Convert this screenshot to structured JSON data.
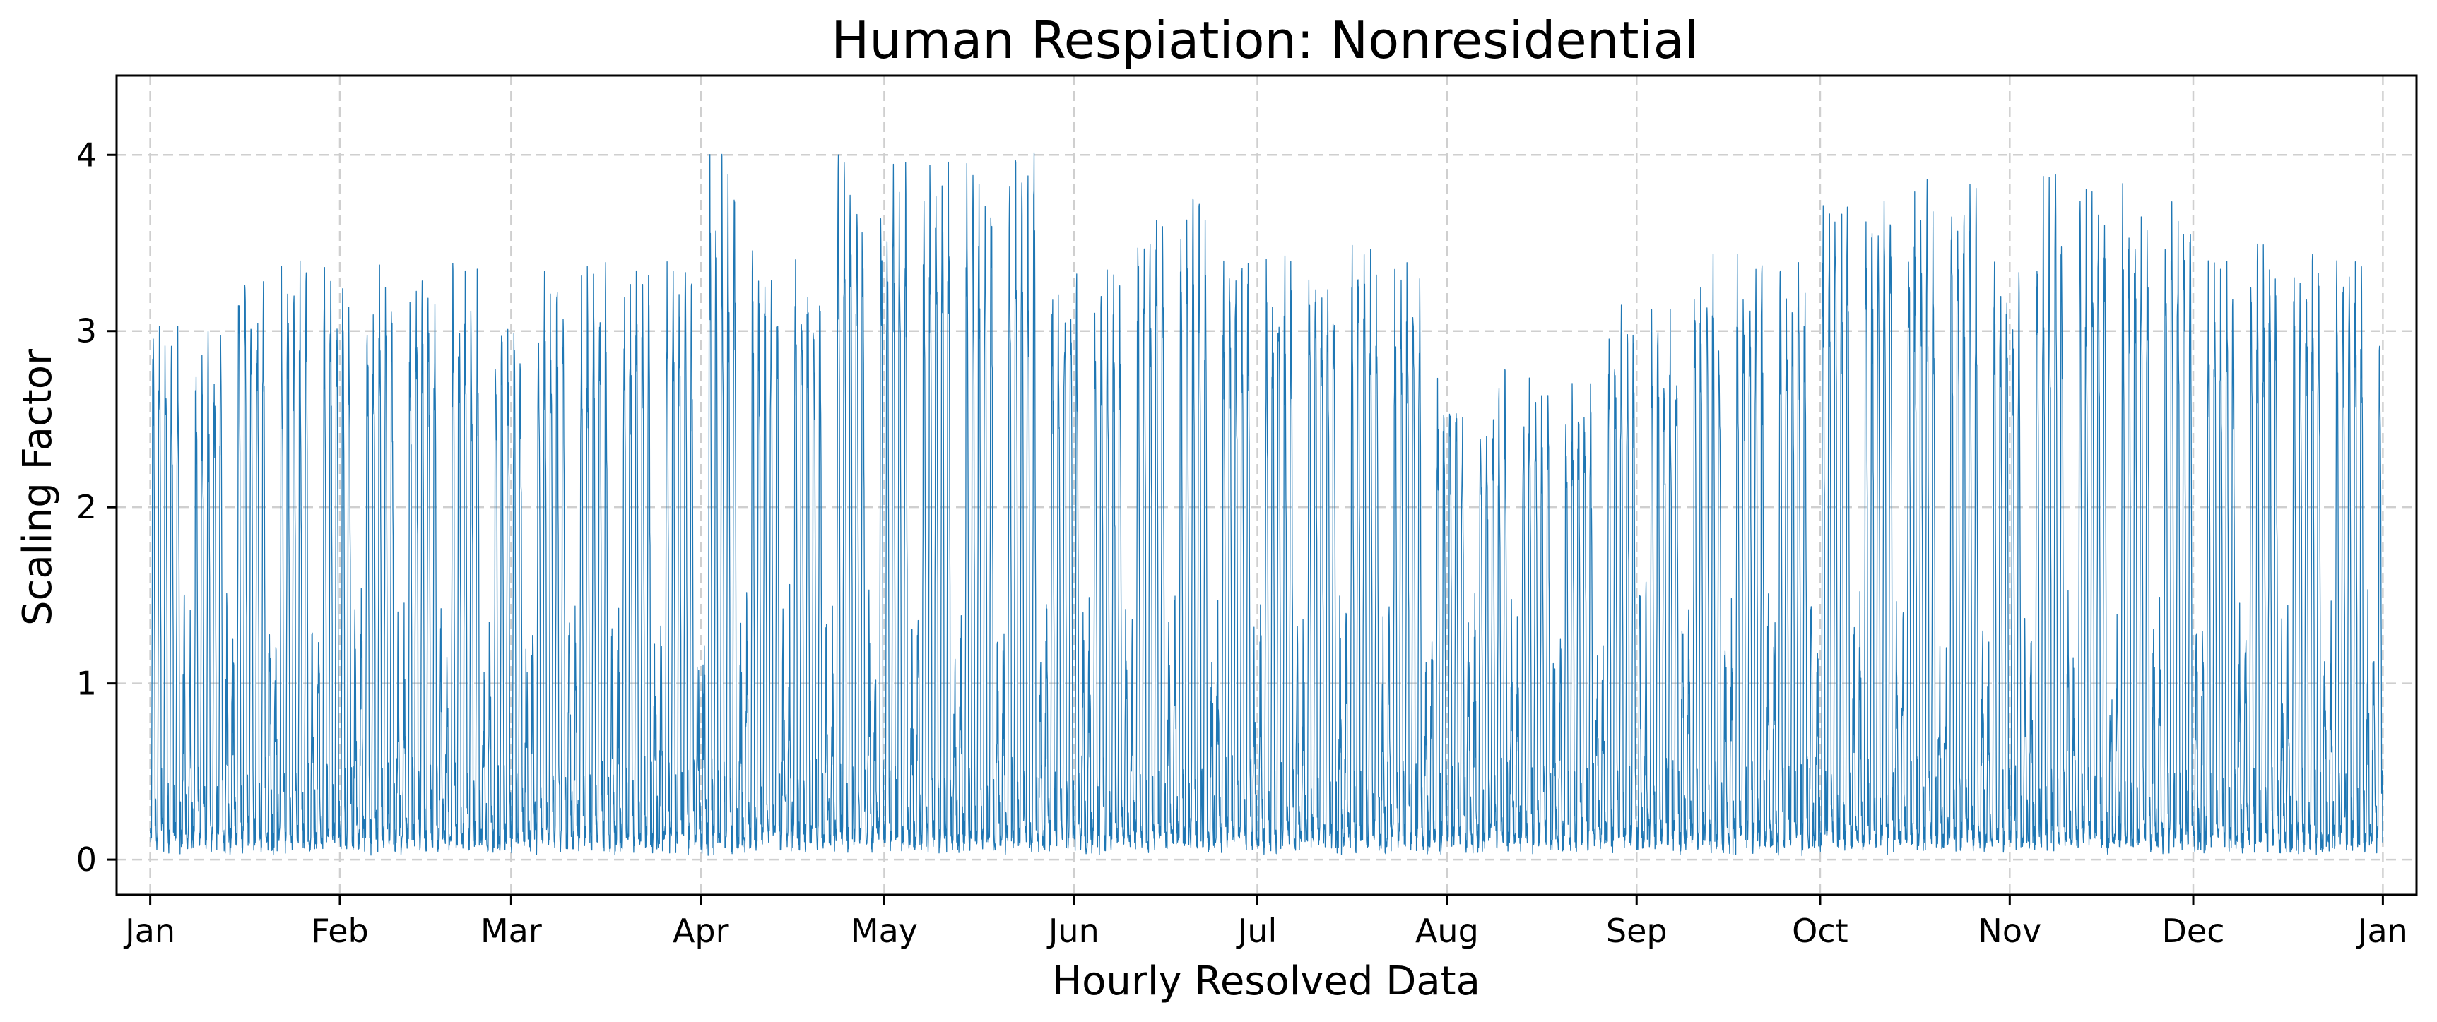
{
  "chart_data": {
    "type": "line",
    "title": "Human Respiation: Nonresidential",
    "xlabel": "Hourly Resolved Data",
    "ylabel": "Scaling Factor",
    "x_ticks": [
      "Jan",
      "Feb",
      "Mar",
      "Apr",
      "May",
      "Jun",
      "Jul",
      "Aug",
      "Sep",
      "Oct",
      "Nov",
      "Dec",
      "Jan"
    ],
    "y_ticks": [
      "0",
      "1",
      "2",
      "3",
      "4"
    ],
    "xlim": [
      "Dec 26",
      "Jan 6 (next year)"
    ],
    "ylim": [
      -0.2,
      4.45
    ],
    "grid": true,
    "resolution": "hourly",
    "series_color": "#1f77b4",
    "series": [
      {
        "weekly_peak_by_week": [
          3.3,
          3.2,
          3.58,
          3.6,
          3.58,
          3.56,
          3.58,
          3.58,
          3.32,
          3.58,
          3.58,
          3.58,
          3.6,
          4.22,
          3.72,
          3.75,
          4.25,
          4.25,
          4.25,
          4.25,
          4.25,
          3.6,
          3.6,
          3.98,
          3.98,
          3.68,
          3.68,
          3.68,
          3.68,
          3.68,
          2.95,
          2.95,
          2.95,
          2.95,
          3.32,
          3.3,
          3.68,
          3.68,
          3.68,
          4.1,
          4.1,
          4.1,
          4.1,
          3.58,
          4.1,
          4.1,
          4.1,
          4.1,
          3.68,
          3.68,
          3.68,
          3.68,
          3.4
        ],
        "night_min_range": [
          0.02,
          0.1
        ],
        "weekend_peak_range": [
          0.5,
          1.5
        ]
      }
    ]
  }
}
